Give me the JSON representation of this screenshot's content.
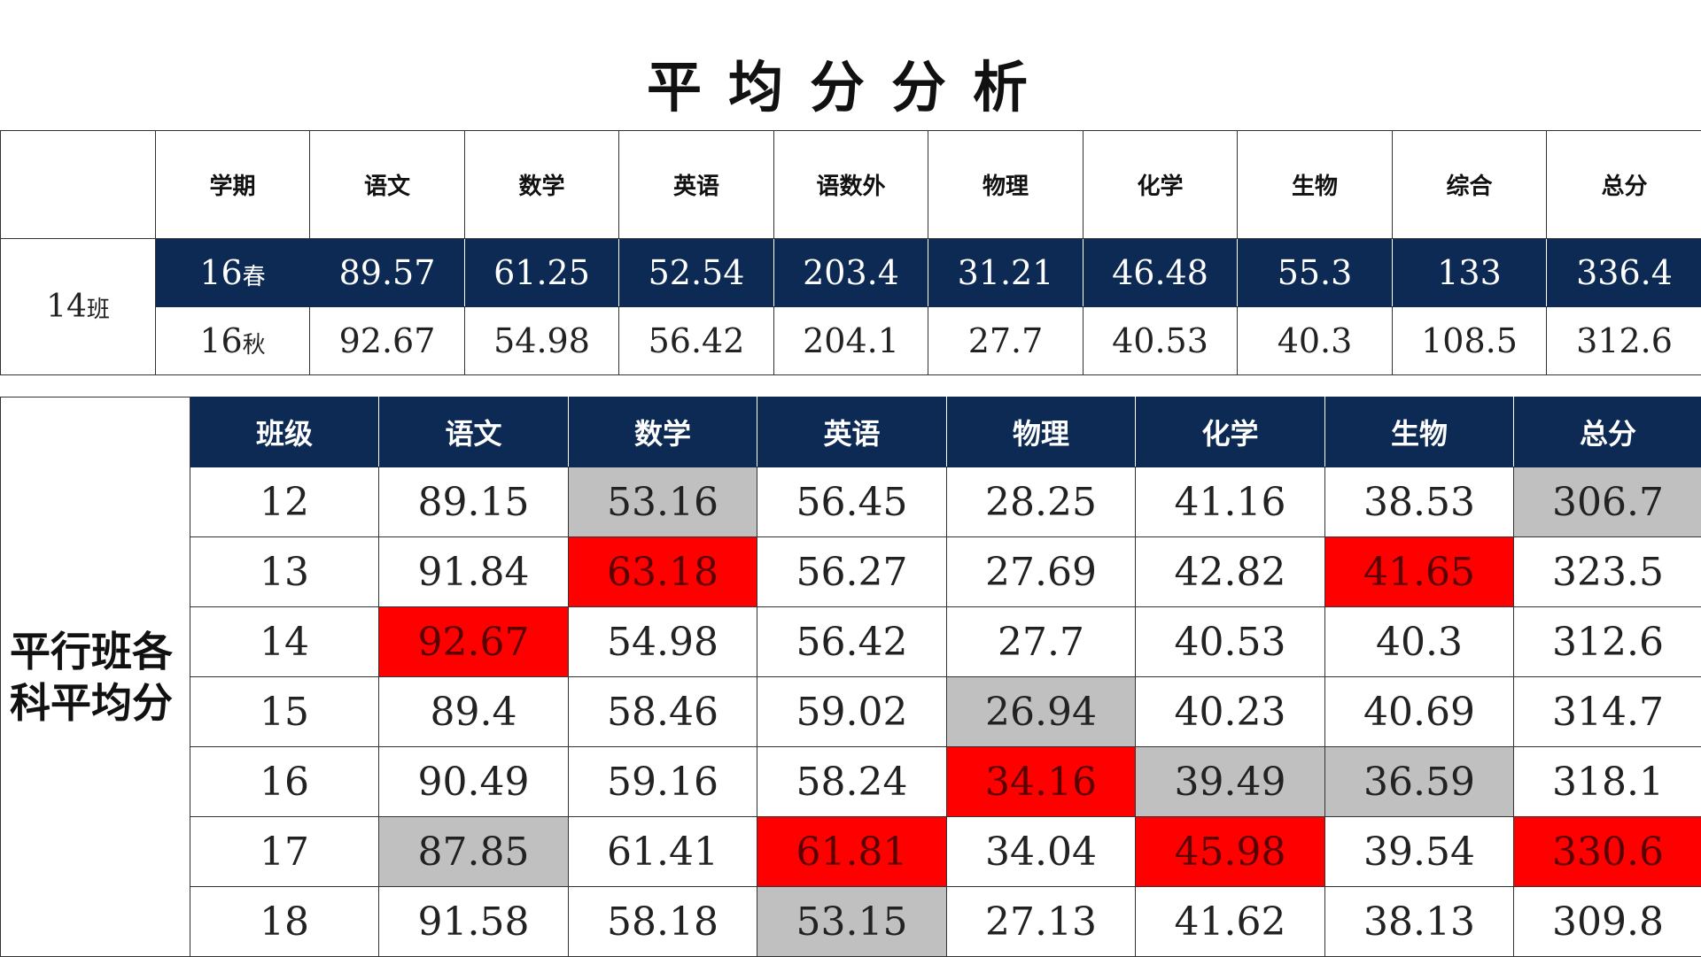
{
  "title": "平均分分析",
  "table1": {
    "headers": [
      "学期",
      "语文",
      "数学",
      "英语",
      "语数外",
      "物理",
      "化学",
      "生物",
      "综合",
      "总分"
    ],
    "class_label": "14",
    "class_suffix": "班",
    "rows": [
      {
        "term_num": "16",
        "term_season": "春",
        "values": [
          "89.57",
          "61.25",
          "52.54",
          "203.4",
          "31.21",
          "46.48",
          "55.3",
          "133",
          "336.4"
        ]
      },
      {
        "term_num": "16",
        "term_season": "秋",
        "values": [
          "92.67",
          "54.98",
          "56.42",
          "204.1",
          "27.7",
          "40.53",
          "40.3",
          "108.5",
          "312.6"
        ]
      }
    ]
  },
  "table2": {
    "side_label_line1": "平行班各",
    "side_label_line2": "科平均分",
    "headers": [
      "班级",
      "语文",
      "数学",
      "英语",
      "物理",
      "化学",
      "生物",
      "总分"
    ],
    "rows": [
      {
        "values": [
          "12",
          "89.15",
          "53.16",
          "56.45",
          "28.25",
          "41.16",
          "38.53",
          "306.7"
        ],
        "highlights": [
          "",
          "",
          "gray",
          "",
          "",
          "",
          "",
          "gray"
        ]
      },
      {
        "values": [
          "13",
          "91.84",
          "63.18",
          "56.27",
          "27.69",
          "42.82",
          "41.65",
          "323.5"
        ],
        "highlights": [
          "",
          "",
          "red",
          "",
          "",
          "",
          "red",
          ""
        ]
      },
      {
        "values": [
          "14",
          "92.67",
          "54.98",
          "56.42",
          "27.7",
          "40.53",
          "40.3",
          "312.6"
        ],
        "highlights": [
          "",
          "red",
          "",
          "",
          "",
          "",
          "",
          ""
        ]
      },
      {
        "values": [
          "15",
          "89.4",
          "58.46",
          "59.02",
          "26.94",
          "40.23",
          "40.69",
          "314.7"
        ],
        "highlights": [
          "",
          "",
          "",
          "",
          "gray",
          "",
          "",
          ""
        ]
      },
      {
        "values": [
          "16",
          "90.49",
          "59.16",
          "58.24",
          "34.16",
          "39.49",
          "36.59",
          "318.1"
        ],
        "highlights": [
          "",
          "",
          "",
          "",
          "red",
          "gray",
          "gray",
          ""
        ]
      },
      {
        "values": [
          "17",
          "87.85",
          "61.41",
          "61.81",
          "34.04",
          "45.98",
          "39.54",
          "330.6"
        ],
        "highlights": [
          "",
          "gray",
          "",
          "red",
          "",
          "red",
          "",
          "red"
        ]
      },
      {
        "values": [
          "18",
          "91.58",
          "58.18",
          "53.15",
          "27.13",
          "41.62",
          "38.13",
          "309.8"
        ],
        "highlights": [
          "",
          "",
          "",
          "gray",
          "",
          "",
          "",
          ""
        ]
      }
    ],
    "colors": {
      "red": "#ff0000",
      "gray": "#c0c0c0",
      "header": "#0c2a54"
    }
  }
}
